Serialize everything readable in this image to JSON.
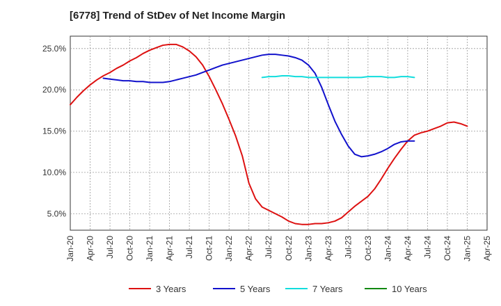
{
  "chart_data": {
    "type": "line",
    "title": "[6778]  Trend of StDev of Net Income Margin",
    "xlabel": "",
    "ylabel": "",
    "ylim": [
      3.0,
      26.5
    ],
    "x_ticks": [
      "Jan-20",
      "Apr-20",
      "Jul-20",
      "Oct-20",
      "Jan-21",
      "Apr-21",
      "Jul-21",
      "Oct-21",
      "Jan-22",
      "Apr-22",
      "Jul-22",
      "Oct-22",
      "Jan-23",
      "Apr-23",
      "Jul-23",
      "Oct-23",
      "Jan-24",
      "Apr-24",
      "Jul-24",
      "Oct-24",
      "Jan-25",
      "Apr-25"
    ],
    "y_ticks": [
      {
        "value": 5,
        "label": "5.0%"
      },
      {
        "value": 10,
        "label": "10.0%"
      },
      {
        "value": 15,
        "label": "15.0%"
      },
      {
        "value": 20,
        "label": "20.0%"
      },
      {
        "value": 25,
        "label": "25.0%"
      }
    ],
    "grid": true,
    "legend_position": "bottom",
    "series": [
      {
        "name": "3 Years",
        "color": "#dd1111",
        "values": [
          18.2,
          19.1,
          19.9,
          20.6,
          21.2,
          21.7,
          22.1,
          22.6,
          23.0,
          23.5,
          23.9,
          24.4,
          24.8,
          25.1,
          25.4,
          25.5,
          25.5,
          25.2,
          24.7,
          24.0,
          23.0,
          21.6,
          20.0,
          18.3,
          16.4,
          14.4,
          12.0,
          8.7,
          6.8,
          5.8,
          5.4,
          5.0,
          4.6,
          4.1,
          3.8,
          3.7,
          3.7,
          3.8,
          3.8,
          3.9,
          4.1,
          4.5,
          5.2,
          5.9,
          6.5,
          7.1,
          8.0,
          9.2,
          10.5,
          11.7,
          12.8,
          13.8,
          14.5,
          14.8,
          15.0,
          15.3,
          15.6,
          16.0,
          16.1,
          15.9,
          15.6
        ]
      },
      {
        "name": "5 Years",
        "color": "#1111cc",
        "values": [
          null,
          null,
          null,
          null,
          null,
          21.4,
          21.3,
          21.2,
          21.1,
          21.1,
          21.0,
          21.0,
          20.9,
          20.9,
          20.9,
          21.0,
          21.2,
          21.4,
          21.6,
          21.8,
          22.1,
          22.4,
          22.7,
          23.0,
          23.2,
          23.4,
          23.6,
          23.8,
          24.0,
          24.2,
          24.3,
          24.3,
          24.2,
          24.1,
          23.9,
          23.6,
          23.0,
          22.0,
          20.3,
          18.2,
          16.2,
          14.6,
          13.2,
          12.2,
          11.9,
          12.0,
          12.2,
          12.5,
          12.9,
          13.4,
          13.7,
          13.8,
          13.8
        ]
      },
      {
        "name": "7 Years",
        "color": "#11dddd",
        "values": [
          null,
          null,
          null,
          null,
          null,
          null,
          null,
          null,
          null,
          null,
          null,
          null,
          null,
          null,
          null,
          null,
          null,
          null,
          null,
          null,
          null,
          null,
          null,
          null,
          null,
          null,
          null,
          null,
          null,
          21.5,
          21.6,
          21.6,
          21.7,
          21.7,
          21.6,
          21.6,
          21.5,
          21.5,
          21.5,
          21.5,
          21.5,
          21.5,
          21.5,
          21.5,
          21.5,
          21.6,
          21.6,
          21.6,
          21.5,
          21.5,
          21.6,
          21.6,
          21.5
        ]
      },
      {
        "name": "10 Years",
        "color": "#118811",
        "values": []
      }
    ]
  }
}
